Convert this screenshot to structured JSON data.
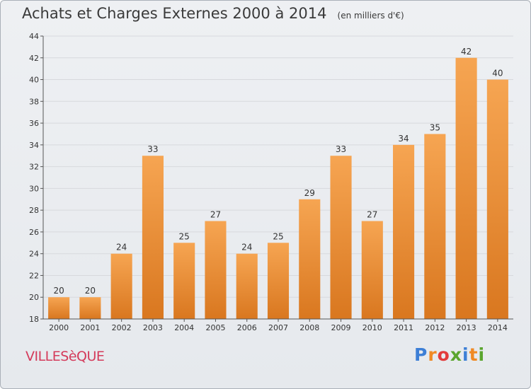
{
  "header": {
    "title": "Achats et Charges Externes 2000 à 2014",
    "subtitle": "(en milliers d'€)"
  },
  "footer": {
    "commune": "VILLESèQUE",
    "logo_letters": [
      "P",
      "r",
      "o",
      "x",
      "i",
      "t",
      "i"
    ],
    "logo_colors": [
      "#3d7fd6",
      "#f08a24",
      "#e23b3b",
      "#5aa52e",
      "#3d7fd6",
      "#f08a24",
      "#5aa52e"
    ]
  },
  "colors": {
    "bar_top": "#f6a552",
    "bar_bottom": "#d9771f",
    "grid": "#d7d9dd",
    "axis": "#555555",
    "text": "#333333"
  },
  "chart_data": {
    "type": "bar",
    "title": "Achats et Charges Externes 2000 à 2014",
    "subtitle": "(en milliers d'€)",
    "categories": [
      "2000",
      "2001",
      "2002",
      "2003",
      "2004",
      "2005",
      "2006",
      "2007",
      "2008",
      "2009",
      "2010",
      "2011",
      "2012",
      "2013",
      "2014"
    ],
    "values": [
      20,
      20,
      24,
      33,
      25,
      27,
      24,
      25,
      29,
      33,
      27,
      34,
      35,
      42,
      40
    ],
    "ylim": [
      18,
      44
    ],
    "yticks": [
      18,
      20,
      22,
      24,
      26,
      28,
      30,
      32,
      34,
      36,
      38,
      40,
      42,
      44
    ],
    "grid": true,
    "xlabel": "",
    "ylabel": ""
  }
}
